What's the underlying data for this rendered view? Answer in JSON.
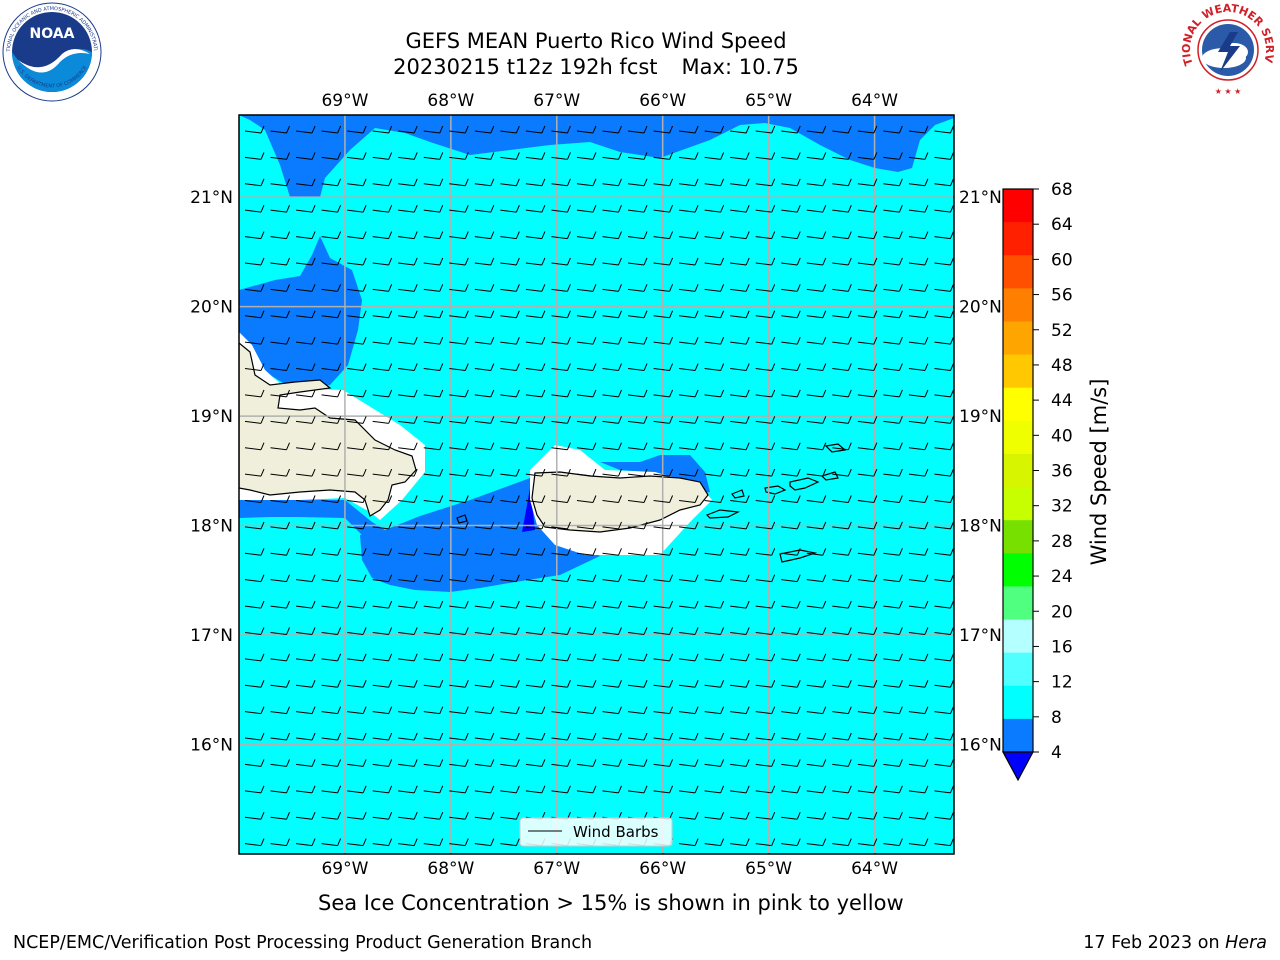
{
  "header": {
    "title_line1": "GEFS MEAN Puerto Rico Wind Speed",
    "title_date": "20230215 t12z 192h fcst",
    "title_max": "Max: 10.75"
  },
  "logos": {
    "left": {
      "text": "NOAA",
      "ring_top": "NATIONAL OCEANIC AND ATMOSPHERIC ADMINISTRATION",
      "ring_bottom": "U.S. DEPARTMENT OF COMMERCE",
      "colors": [
        "#1a3a8a",
        "#0a8ad8",
        "#ffffff"
      ]
    },
    "right": {
      "ring_text": "NATIONAL WEATHER SERVICE",
      "colors": [
        "#d11f26",
        "#2a5aa8",
        "#ffffff"
      ]
    }
  },
  "map": {
    "lon_labels": [
      "69°W",
      "68°W",
      "67°W",
      "66°W",
      "65°W",
      "64°W"
    ],
    "lat_labels": [
      "21°N",
      "20°N",
      "19°N",
      "18°N",
      "17°N",
      "16°N"
    ],
    "lon_ticks": [
      -69,
      -68,
      -67,
      -66,
      -65,
      -64
    ],
    "lat_ticks": [
      21,
      20,
      19,
      18,
      17,
      16
    ],
    "extent": {
      "lon_min": -70,
      "lon_max": -63.25,
      "lat_min": 15,
      "lat_max": 21.75
    },
    "colors": {
      "land": "#efefdc",
      "cyan": "#00ffff",
      "blue": "#0a7bff",
      "navy": "#0000ff",
      "grid": "#b0b0b0"
    },
    "barb_grid": {
      "rows": 28,
      "cols": 28
    },
    "legend_label": "Wind Barbs"
  },
  "colorbar": {
    "label": "Wind Speed [m/s]",
    "ticks": [
      "68",
      "64",
      "60",
      "56",
      "52",
      "48",
      "44",
      "40",
      "36",
      "32",
      "28",
      "24",
      "20",
      "16",
      "12",
      "8",
      "4"
    ],
    "colors": [
      "#ff0000",
      "#ff2000",
      "#ff5000",
      "#ff8000",
      "#ffa500",
      "#ffc800",
      "#ffff00",
      "#f0ff00",
      "#d8f500",
      "#c8ff00",
      "#78e000",
      "#00ff00",
      "#50ff80",
      "#b4ffff",
      "#50ffff",
      "#00ffff",
      "#0a7bff"
    ],
    "extend_color": "#0000ff"
  },
  "note": "Sea Ice Concentration > 15% is shown in pink to yellow",
  "footer": {
    "left": "NCEP/EMC/Verification Post Processing Product Generation Branch",
    "date": "17 Feb 2023 on",
    "host": "Hera"
  }
}
